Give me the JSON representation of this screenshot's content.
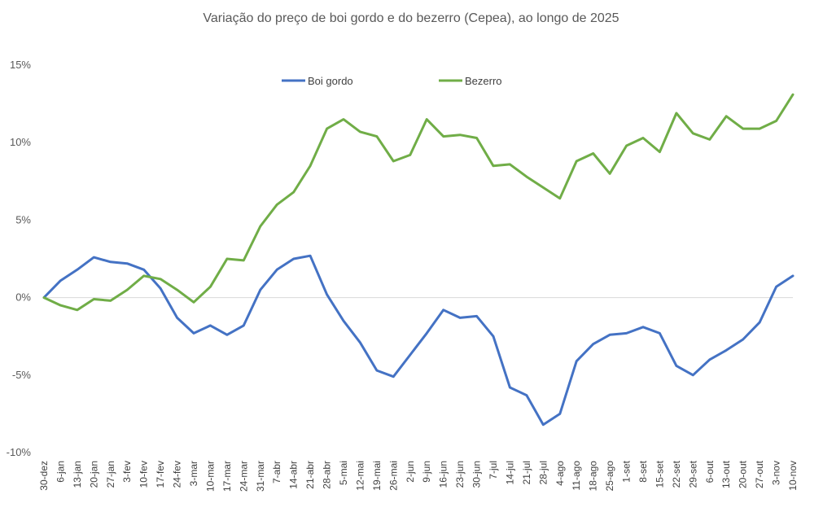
{
  "chart_data": {
    "type": "line",
    "title": "Variação do preço de boi gordo  e do bezerro (Cepea), ao longo de 2025",
    "xlabel": "",
    "ylabel": "",
    "ylim": [
      -10,
      15
    ],
    "y_ticks": [
      -10,
      -5,
      0,
      5,
      10,
      15
    ],
    "y_tick_labels": [
      "-10%",
      "-5%",
      "0%",
      "5%",
      "10%",
      "15%"
    ],
    "grid": "zero-line only",
    "legend_position": "top-center",
    "categories": [
      "30-dez",
      "6-jan",
      "13-jan",
      "20-jan",
      "27-jan",
      "3-fev",
      "10-fev",
      "17-fev",
      "24-fev",
      "3-mar",
      "10-mar",
      "17-mar",
      "24-mar",
      "31-mar",
      "7-abr",
      "14-abr",
      "21-abr",
      "28-abr",
      "5-mai",
      "12-mai",
      "19-mai",
      "26-mai",
      "2-jun",
      "9-jun",
      "16-jun",
      "23-jun",
      "30-jun",
      "7-jul",
      "14-jul",
      "21-jul",
      "28-jul",
      "4-ago",
      "11-ago",
      "18-ago",
      "25-ago",
      "1-set",
      "8-set",
      "15-set",
      "22-set",
      "29-set",
      "6-out",
      "13-out",
      "20-out",
      "27-out",
      "3-nov",
      "10-nov"
    ],
    "series": [
      {
        "name": "Boi gordo",
        "color": "#4472c4",
        "values": [
          0,
          1.1,
          1.8,
          2.6,
          2.3,
          2.2,
          1.8,
          0.6,
          -1.3,
          -2.3,
          -1.8,
          -2.4,
          -1.8,
          0.5,
          1.8,
          2.5,
          2.7,
          0.2,
          -1.5,
          -2.9,
          -4.7,
          -5.1,
          -3.7,
          -2.3,
          -0.8,
          -1.3,
          -1.2,
          -2.5,
          -5.8,
          -6.3,
          -8.2,
          -7.5,
          -4.1,
          -3.0,
          -2.4,
          -2.3,
          -1.9,
          -2.3,
          -4.4,
          -5.0,
          -4.0,
          -3.4,
          -2.7,
          -1.6,
          0.7,
          1.4
        ]
      },
      {
        "name": "Bezerro",
        "color": "#70ad47",
        "values": [
          0,
          -0.5,
          -0.8,
          -0.1,
          -0.2,
          0.5,
          1.4,
          1.2,
          0.5,
          -0.3,
          0.7,
          2.5,
          2.4,
          4.6,
          6.0,
          6.8,
          8.5,
          10.9,
          11.5,
          10.7,
          10.4,
          8.8,
          9.2,
          11.5,
          10.4,
          10.5,
          10.3,
          8.5,
          8.6,
          7.8,
          7.1,
          6.4,
          8.8,
          9.3,
          8.0,
          9.8,
          10.3,
          9.4,
          11.9,
          10.6,
          10.2,
          11.7,
          10.9,
          10.9,
          11.4,
          13.1
        ]
      }
    ]
  }
}
